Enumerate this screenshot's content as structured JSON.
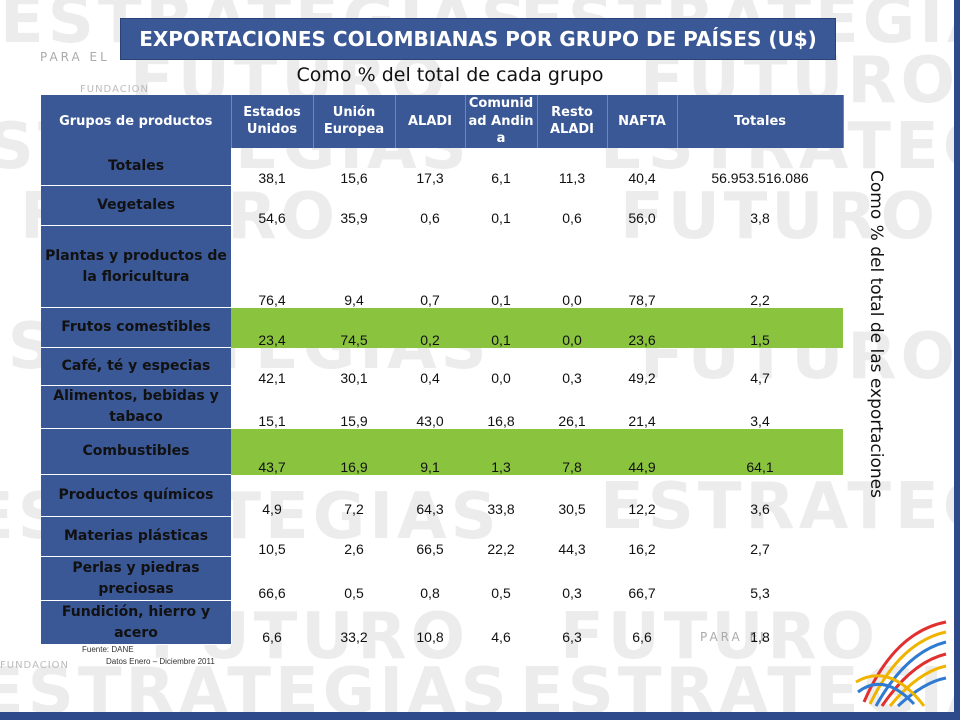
{
  "title": "EXPORTACIONES COLOMBIANAS POR GRUPO DE PAÍSES (U$)",
  "subtitle": "Como % del total de cada grupo",
  "side_note": "Como % del total de las exportaciones",
  "watermark": {
    "words": [
      "ESTRATEGIAS",
      "FUTURO",
      "PARA EL",
      "FUNDACION"
    ]
  },
  "table": {
    "headers": [
      "Grupos de productos",
      "Estados Unidos",
      "Unión Europea",
      "ALADI",
      "Comunidad Andina",
      "Resto ALADI",
      "NAFTA",
      "Totales"
    ],
    "rows": [
      {
        "label": "Totales",
        "values": [
          "38,1",
          "15,6",
          "17,3",
          "6,1",
          "11,3",
          "40,4",
          "56.953.516.086"
        ],
        "highlight": false
      },
      {
        "label": "Vegetales",
        "values": [
          "54,6",
          "35,9",
          "0,6",
          "0,1",
          "0,6",
          "56,0",
          "3,8"
        ],
        "highlight": false
      },
      {
        "label": "Plantas y productos de la floricultura",
        "values": [
          "76,4",
          "9,4",
          "0,7",
          "0,1",
          "0,0",
          "78,7",
          "2,2"
        ],
        "highlight": false
      },
      {
        "label": "Frutos comestibles",
        "values": [
          "23,4",
          "74,5",
          "0,2",
          "0,1",
          "0,0",
          "23,6",
          "1,5"
        ],
        "highlight": true
      },
      {
        "label": "Café, té y especias",
        "values": [
          "42,1",
          "30,1",
          "0,4",
          "0,0",
          "0,3",
          "49,2",
          "4,7"
        ],
        "highlight": false
      },
      {
        "label": "Alimentos, bebidas y tabaco",
        "values": [
          "15,1",
          "15,9",
          "43,0",
          "16,8",
          "26,1",
          "21,4",
          "3,4"
        ],
        "highlight": false
      },
      {
        "label": "Combustibles",
        "values": [
          "43,7",
          "16,9",
          "9,1",
          "1,3",
          "7,8",
          "44,9",
          "64,1"
        ],
        "highlight": true
      },
      {
        "label": "Productos químicos",
        "values": [
          "4,9",
          "7,2",
          "64,3",
          "33,8",
          "30,5",
          "12,2",
          "3,6"
        ],
        "highlight": false
      },
      {
        "label": "Materias plásticas",
        "values": [
          "10,5",
          "2,6",
          "66,5",
          "22,2",
          "44,3",
          "16,2",
          "2,7"
        ],
        "highlight": false
      },
      {
        "label": "Perlas y piedras preciosas",
        "values": [
          "66,6",
          "0,5",
          "0,8",
          "0,5",
          "0,3",
          "66,7",
          "5,3"
        ],
        "highlight": false
      },
      {
        "label": "Fundición, hierro y acero",
        "values": [
          "6,6",
          "33,2",
          "10,8",
          "4,6",
          "6,3",
          "6,6",
          "1,8"
        ],
        "highlight": false
      }
    ]
  },
  "footnote": {
    "source": "Fuente: DANE",
    "period": "Datos Enero – Diciembre 2011"
  },
  "colors": {
    "header_blue": "#3a5796",
    "highlight_green": "#8ac43f"
  }
}
